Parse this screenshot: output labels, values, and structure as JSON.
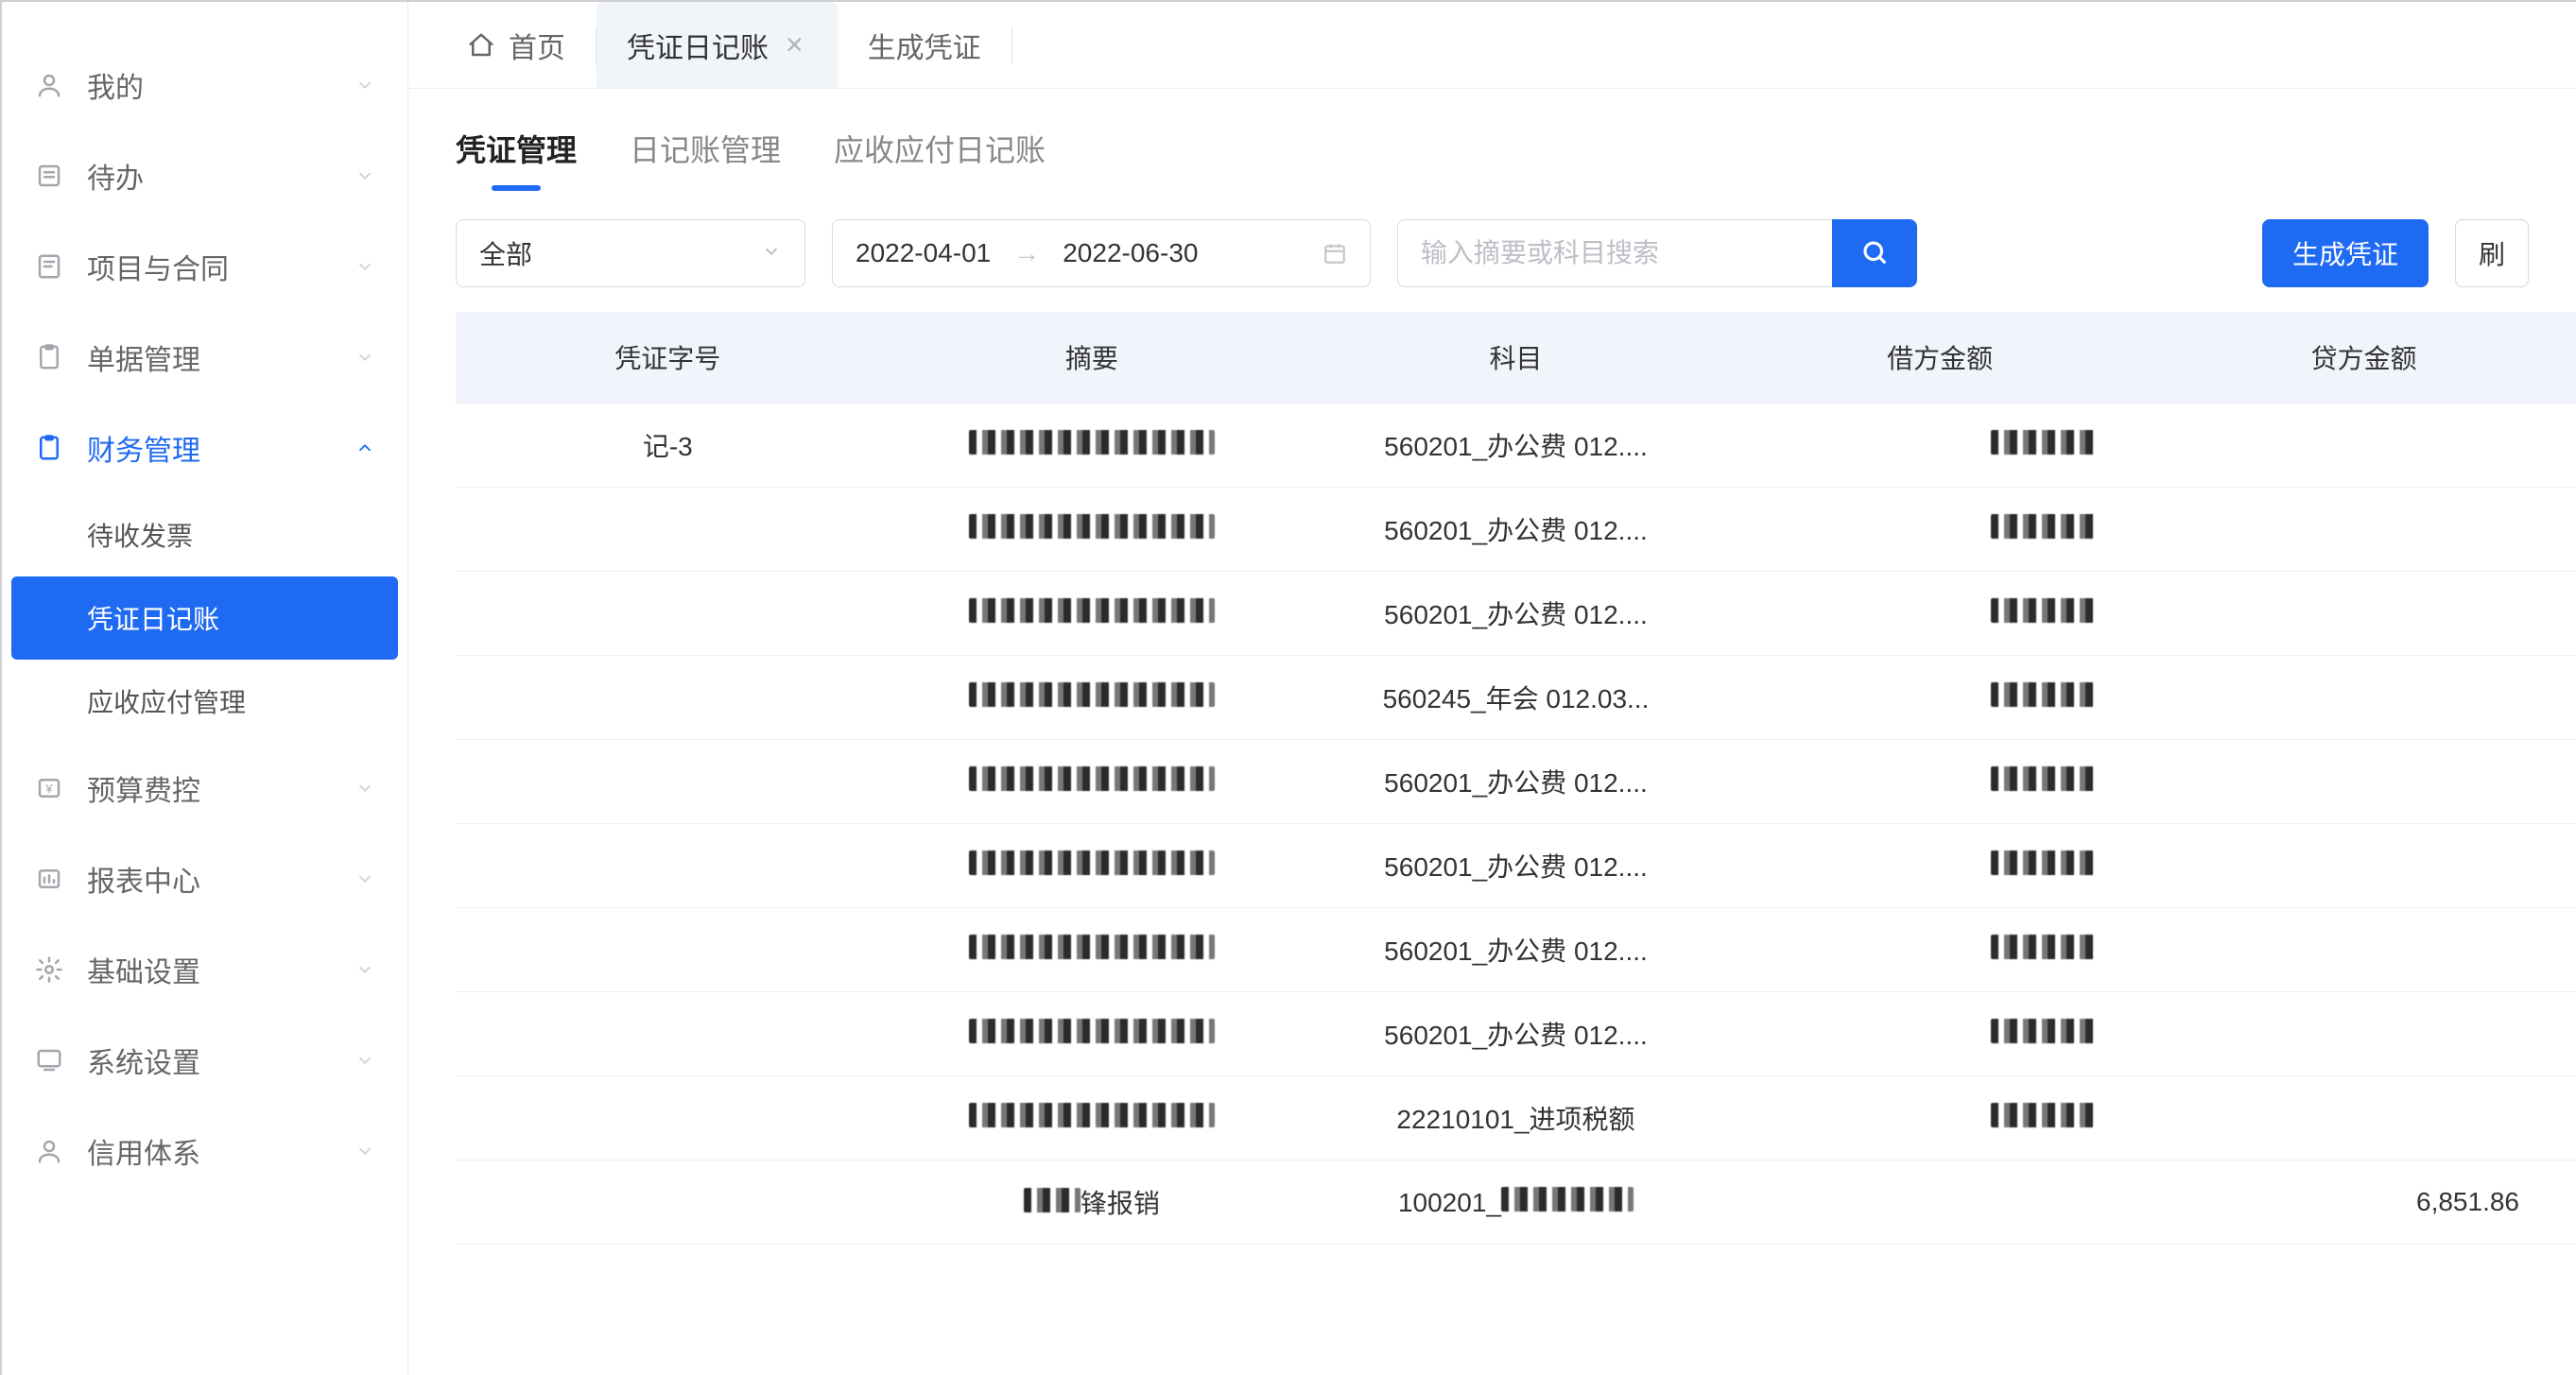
{
  "colors": {
    "primary": "#1f6af2",
    "sidebar_icon": "#a4a6ad",
    "border": "#d7d9de",
    "table_header_bg": "#f1f5fb",
    "text_main": "#333333",
    "text_muted": "#888888",
    "placeholder": "#bdbfc6",
    "active_tab_bg": "#f1f4f8"
  },
  "sidebar": {
    "items": [
      {
        "icon": "user",
        "label": "我的",
        "expanded": false,
        "children": []
      },
      {
        "icon": "todo",
        "label": "待办",
        "expanded": false,
        "children": []
      },
      {
        "icon": "project",
        "label": "项目与合同",
        "expanded": false,
        "children": []
      },
      {
        "icon": "bill",
        "label": "单据管理",
        "expanded": false,
        "children": []
      },
      {
        "icon": "finance",
        "label": "财务管理",
        "expanded": true,
        "children": [
          {
            "label": "待收发票",
            "active": false
          },
          {
            "label": "凭证日记账",
            "active": true
          },
          {
            "label": "应收应付管理",
            "active": false
          }
        ]
      },
      {
        "icon": "budget",
        "label": "预算费控",
        "expanded": false,
        "children": []
      },
      {
        "icon": "report",
        "label": "报表中心",
        "expanded": false,
        "children": []
      },
      {
        "icon": "basic",
        "label": "基础设置",
        "expanded": false,
        "children": []
      },
      {
        "icon": "system",
        "label": "系统设置",
        "expanded": false,
        "children": []
      },
      {
        "icon": "credit",
        "label": "信用体系",
        "expanded": false,
        "children": []
      }
    ]
  },
  "top_tabs": [
    {
      "label": "首页",
      "has_icon": true,
      "icon": "home",
      "closable": false,
      "active": false
    },
    {
      "label": "凭证日记账",
      "closable": true,
      "active": true
    },
    {
      "label": "生成凭证",
      "closable": false,
      "active": false
    }
  ],
  "sub_tabs": [
    {
      "label": "凭证管理",
      "active": true
    },
    {
      "label": "日记账管理",
      "active": false
    },
    {
      "label": "应收应付日记账",
      "active": false
    }
  ],
  "toolbar": {
    "filter_select": {
      "value": "全部"
    },
    "date_from": "2022-04-01",
    "date_to": "2022-06-30",
    "search_placeholder": "输入摘要或科目搜索",
    "generate_btn": "生成凭证",
    "refresh_btn": "刷"
  },
  "table": {
    "columns": [
      {
        "key": "voucher_no",
        "label": "凭证字号"
      },
      {
        "key": "summary",
        "label": "摘要"
      },
      {
        "key": "subject",
        "label": "科目"
      },
      {
        "key": "debit",
        "label": "借方金额"
      },
      {
        "key": "credit",
        "label": "贷方金额"
      }
    ],
    "rows": [
      {
        "voucher_no": "记-3",
        "summary_redacted": true,
        "subject": "560201_办公费 012....",
        "debit_redacted": true,
        "credit": ""
      },
      {
        "voucher_no": "",
        "summary_redacted": true,
        "subject": "560201_办公费 012....",
        "debit_redacted": true,
        "credit": ""
      },
      {
        "voucher_no": "",
        "summary_redacted": true,
        "subject": "560201_办公费 012....",
        "debit_redacted": true,
        "credit": ""
      },
      {
        "voucher_no": "",
        "summary_redacted": true,
        "subject": "560245_年会 012.03...",
        "debit_redacted": true,
        "credit": ""
      },
      {
        "voucher_no": "",
        "summary_redacted": true,
        "subject": "560201_办公费 012....",
        "debit_redacted": true,
        "credit": ""
      },
      {
        "voucher_no": "",
        "summary_redacted": true,
        "subject": "560201_办公费 012....",
        "debit_redacted": true,
        "credit": ""
      },
      {
        "voucher_no": "",
        "summary_redacted": true,
        "subject": "560201_办公费 012....",
        "debit_redacted": true,
        "credit": ""
      },
      {
        "voucher_no": "",
        "summary_redacted": true,
        "subject": "560201_办公费 012....",
        "debit_redacted": true,
        "credit": ""
      },
      {
        "voucher_no": "",
        "summary_redacted": true,
        "subject": "22210101_进项税额",
        "debit_redacted": true,
        "credit": ""
      },
      {
        "voucher_no": "",
        "summary_partial": "锋报销",
        "summary_redacted": true,
        "subject_redacted_prefix": "100201_",
        "debit": "",
        "credit": "6,851.86"
      }
    ]
  }
}
